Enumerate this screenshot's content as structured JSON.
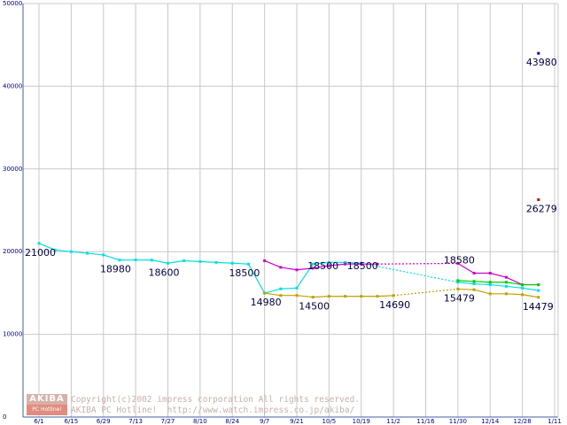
{
  "chart_data": {
    "type": "line",
    "title": "",
    "xlabel": "",
    "ylabel": "",
    "ylim": [
      0,
      50000
    ],
    "grid": true,
    "legend": "none",
    "y_ticks": [
      "0",
      "10000",
      "20000",
      "30000",
      "40000",
      "50000"
    ],
    "x_ticks": [
      "6/1",
      "6/15",
      "6/29",
      "7/13",
      "7/27",
      "8/10",
      "8/24",
      "9/7",
      "9/21",
      "10/5",
      "10/19",
      "11/2",
      "11/16",
      "11/30",
      "12/14",
      "12/28",
      "1/11"
    ],
    "series": [
      {
        "color": "#00e0e0",
        "points": [
          [
            "6/1",
            21000
          ],
          [
            "6/8",
            20200
          ],
          [
            "6/15",
            20000
          ],
          [
            "6/22",
            19800
          ],
          [
            "6/29",
            19600
          ],
          [
            "7/6",
            18980
          ],
          [
            "7/13",
            19000
          ],
          [
            "7/20",
            18980
          ],
          [
            "7/27",
            18600
          ],
          [
            "8/3",
            18900
          ],
          [
            "8/10",
            18800
          ],
          [
            "8/17",
            18700
          ],
          [
            "8/24",
            18600
          ],
          [
            "8/31",
            18500
          ],
          [
            "9/7",
            14980
          ],
          [
            "9/14",
            15500
          ],
          [
            "9/21",
            15600
          ],
          [
            "9/28",
            18500
          ],
          [
            "10/5",
            18700
          ],
          [
            "10/12",
            18700
          ],
          [
            "10/19",
            18600
          ],
          [
            "11/30",
            16300
          ],
          [
            "12/7",
            16100
          ],
          [
            "12/14",
            16000
          ],
          [
            "12/21",
            15800
          ],
          [
            "12/28",
            15600
          ],
          [
            "1/4",
            15300
          ]
        ]
      },
      {
        "color": "#cc00cc",
        "points": [
          [
            "9/7",
            18900
          ],
          [
            "9/14",
            18100
          ],
          [
            "9/21",
            17800
          ],
          [
            "9/28",
            18000
          ],
          [
            "10/5",
            18300
          ],
          [
            "10/12",
            18500
          ],
          [
            "10/19",
            18500
          ],
          [
            "10/26",
            18500
          ],
          [
            "11/30",
            18580
          ],
          [
            "12/7",
            17400
          ],
          [
            "12/14",
            17400
          ],
          [
            "12/21",
            16900
          ],
          [
            "12/28",
            16000
          ],
          [
            "1/4",
            16000
          ]
        ]
      },
      {
        "color": "#c0a000",
        "points": [
          [
            "9/7",
            14980
          ],
          [
            "9/14",
            14700
          ],
          [
            "9/21",
            14700
          ],
          [
            "9/28",
            14500
          ],
          [
            "10/5",
            14600
          ],
          [
            "10/12",
            14600
          ],
          [
            "10/19",
            14600
          ],
          [
            "10/26",
            14600
          ],
          [
            "11/2",
            14690
          ],
          [
            "11/30",
            15479
          ],
          [
            "12/7",
            15400
          ],
          [
            "12/14",
            14900
          ],
          [
            "12/21",
            14900
          ],
          [
            "12/28",
            14800
          ],
          [
            "1/4",
            14479
          ]
        ]
      },
      {
        "color": "#00cc00",
        "points": [
          [
            "11/30",
            16500
          ],
          [
            "12/7",
            16400
          ],
          [
            "12/14",
            16300
          ],
          [
            "12/21",
            16300
          ],
          [
            "12/28",
            16000
          ],
          [
            "1/4",
            16000
          ]
        ]
      },
      {
        "color": "#0000cc",
        "points": [
          [
            "1/4",
            43980
          ]
        ]
      },
      {
        "color": "#cc0000",
        "points": [
          [
            "1/4",
            26279
          ]
        ]
      }
    ],
    "data_labels": [
      {
        "text": "21000",
        "date": "6/1",
        "value": 21000
      },
      {
        "text": "18980",
        "date": "7/6",
        "value": 18980
      },
      {
        "text": "18600",
        "date": "7/27",
        "value": 18600
      },
      {
        "text": "18500",
        "date": "8/31",
        "value": 18500
      },
      {
        "text": "14980",
        "date": "9/7",
        "value": 14980
      },
      {
        "text": "18500",
        "date": "9/28",
        "value": 18500
      },
      {
        "text": "14500",
        "date": "9/28",
        "value": 14500
      },
      {
        "text": "18500",
        "date": "10/19",
        "value": 18500
      },
      {
        "text": "14690",
        "date": "11/2",
        "value": 14690
      },
      {
        "text": "18580",
        "date": "11/30",
        "value": 18580
      },
      {
        "text": "15479",
        "date": "11/30",
        "value": 15479
      },
      {
        "text": "14479",
        "date": "1/4",
        "value": 14479
      },
      {
        "text": "26279",
        "date": "1/4",
        "value": 26279
      },
      {
        "text": "43980",
        "date": "1/4",
        "value": 43980
      }
    ]
  },
  "watermark": {
    "logo_top": "AKIBA",
    "logo_bottom": "PC Hotline!",
    "line1": "Copyright(c)2002 impress corporation All rights reserved.",
    "line2": "AKIBA PC Hotline!  http://www.watch.impress.co.jp/akiba/"
  }
}
